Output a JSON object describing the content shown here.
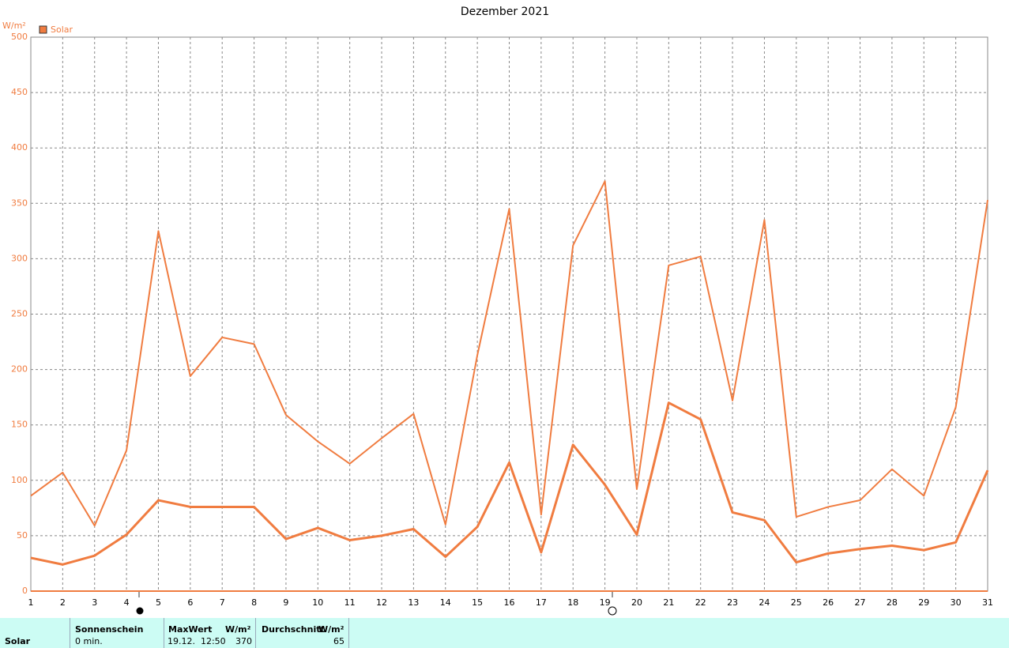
{
  "chart_data": {
    "type": "line",
    "title": "Dezember 2021",
    "y_label": "W/m²",
    "x": [
      1,
      2,
      3,
      4,
      5,
      6,
      7,
      8,
      9,
      10,
      11,
      12,
      13,
      14,
      15,
      16,
      17,
      18,
      19,
      20,
      21,
      22,
      23,
      24,
      25,
      26,
      27,
      28,
      29,
      30,
      31
    ],
    "xlim": [
      1,
      31
    ],
    "xticks": [
      1,
      2,
      3,
      4,
      5,
      6,
      7,
      8,
      9,
      10,
      11,
      12,
      13,
      14,
      15,
      16,
      17,
      18,
      19,
      20,
      21,
      22,
      23,
      24,
      25,
      26,
      27,
      28,
      29,
      30,
      31
    ],
    "ylim": [
      0,
      500
    ],
    "yticks": [
      0,
      50,
      100,
      150,
      200,
      250,
      300,
      350,
      400,
      450,
      500
    ],
    "grid": true,
    "series": [
      {
        "name": "Solar",
        "color": "#f07c40",
        "width": 2,
        "values": [
          86,
          107,
          59,
          127,
          325,
          194,
          229,
          223,
          159,
          135,
          115,
          138,
          160,
          60,
          213,
          345,
          69,
          312,
          370,
          92,
          294,
          302,
          172,
          335,
          67,
          76,
          82,
          110,
          86,
          166,
          353
        ]
      },
      {
        "color": "#f07c40",
        "width": 3,
        "values": [
          30,
          24,
          32,
          51,
          82,
          76,
          76,
          76,
          47,
          57,
          46,
          50,
          56,
          31,
          58,
          116,
          35,
          132,
          96,
          51,
          170,
          155,
          71,
          64,
          26,
          34,
          38,
          41,
          37,
          44,
          109
        ]
      }
    ]
  },
  "table": {
    "row_label": "Solar",
    "sunshine": {
      "title": "Sonnenschein",
      "value": "0 min."
    },
    "max": {
      "title": "MaxWert",
      "unit": "W/m²",
      "time": "19.12.  12:50",
      "value": 370
    },
    "average": {
      "title": "Durchschnitt",
      "unit": "W/m²",
      "value": 65
    }
  }
}
